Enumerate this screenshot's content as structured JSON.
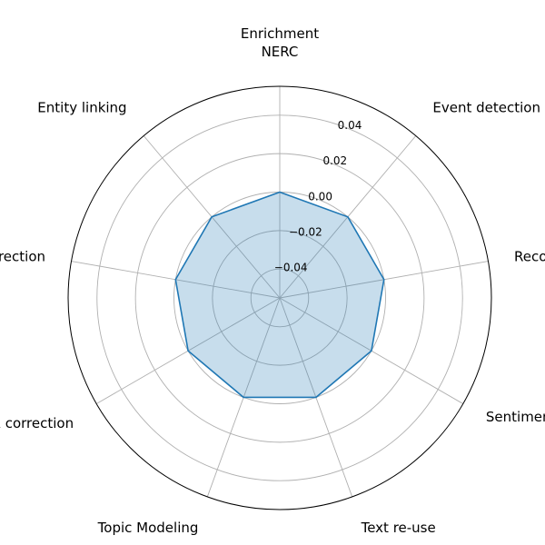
{
  "chart_data": {
    "type": "radar",
    "categories": [
      [
        "Enrichment",
        "NERC"
      ],
      [
        "Event detection"
      ],
      [
        "Recommendation"
      ],
      [
        "Sentiment Analysis"
      ],
      [
        "Text re-use"
      ],
      [
        "Topic Modeling"
      ],
      [
        "Crowdsourced post-OCR correction"
      ],
      [
        "Automatic post-OCR correction"
      ],
      [
        "Entity linking"
      ]
    ],
    "series": [
      {
        "values": [
          0,
          0,
          0,
          0,
          0,
          0,
          0,
          0,
          0
        ]
      }
    ],
    "radial_ticks": [
      "−0.04",
      "−0.02",
      "0.00",
      "0.02",
      "0.04"
    ],
    "rlim": [
      -0.055,
      0.055
    ],
    "grid": true,
    "colors": {
      "line": "#1f77b4",
      "fill": "#1f77b4",
      "grid": "#b0b0b0",
      "frame": "#000000"
    }
  }
}
